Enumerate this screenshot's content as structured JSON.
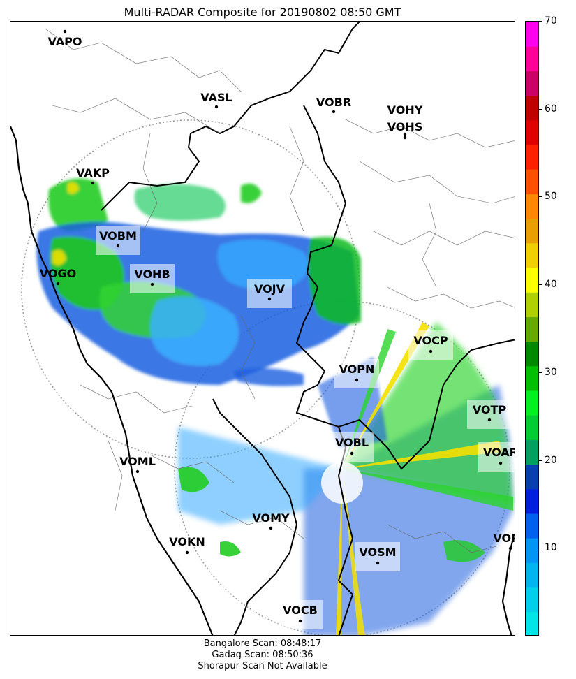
{
  "title": "Multi-RADAR Composite for 20190802 08:50 GMT",
  "stations": [
    {
      "code": "VAPO",
      "highlight": false
    },
    {
      "code": "VASL",
      "highlight": false
    },
    {
      "code": "VOBR",
      "highlight": false
    },
    {
      "code": "VOHY",
      "highlight": false
    },
    {
      "code": "VOHS",
      "highlight": false
    },
    {
      "code": "VAKP",
      "highlight": false
    },
    {
      "code": "VOBM",
      "highlight": true
    },
    {
      "code": "VOGO",
      "highlight": false
    },
    {
      "code": "VOHB",
      "highlight": true
    },
    {
      "code": "VOJV",
      "highlight": true
    },
    {
      "code": "VOCP",
      "highlight": true
    },
    {
      "code": "VOPN",
      "highlight": true
    },
    {
      "code": "VOTP",
      "highlight": true
    },
    {
      "code": "VOBL",
      "highlight": true
    },
    {
      "code": "VOAR",
      "highlight": true
    },
    {
      "code": "VOML",
      "highlight": false
    },
    {
      "code": "VOMY",
      "highlight": false
    },
    {
      "code": "VOKN",
      "highlight": false
    },
    {
      "code": "VOPC",
      "highlight": false
    },
    {
      "code": "VOSM",
      "highlight": true
    },
    {
      "code": "VOCB",
      "highlight": true
    }
  ],
  "colorbar": {
    "min": 0,
    "max": 70,
    "ticks": [
      "10",
      "20",
      "30",
      "40",
      "50",
      "60",
      "70"
    ],
    "tick_values": [
      10,
      20,
      30,
      40,
      50,
      60,
      70
    ],
    "colors": [
      "#00e5e5",
      "#00cfea",
      "#00b5f0",
      "#0096f5",
      "#0060f0",
      "#0020e0",
      "#0a3fb0",
      "#00a060",
      "#00cc33",
      "#00f020",
      "#00c000",
      "#008800",
      "#66aa00",
      "#b0d000",
      "#ffff00",
      "#f0d000",
      "#e8a000",
      "#ff8800",
      "#ff5000",
      "#ff2000",
      "#e00000",
      "#c00000",
      "#cc0066",
      "#ff0099",
      "#ff00ee"
    ]
  },
  "footer": [
    "Bangalore Scan: 08:48:17",
    "Gadag Scan: 08:50:36",
    "Shorapur Scan Not Available"
  ]
}
